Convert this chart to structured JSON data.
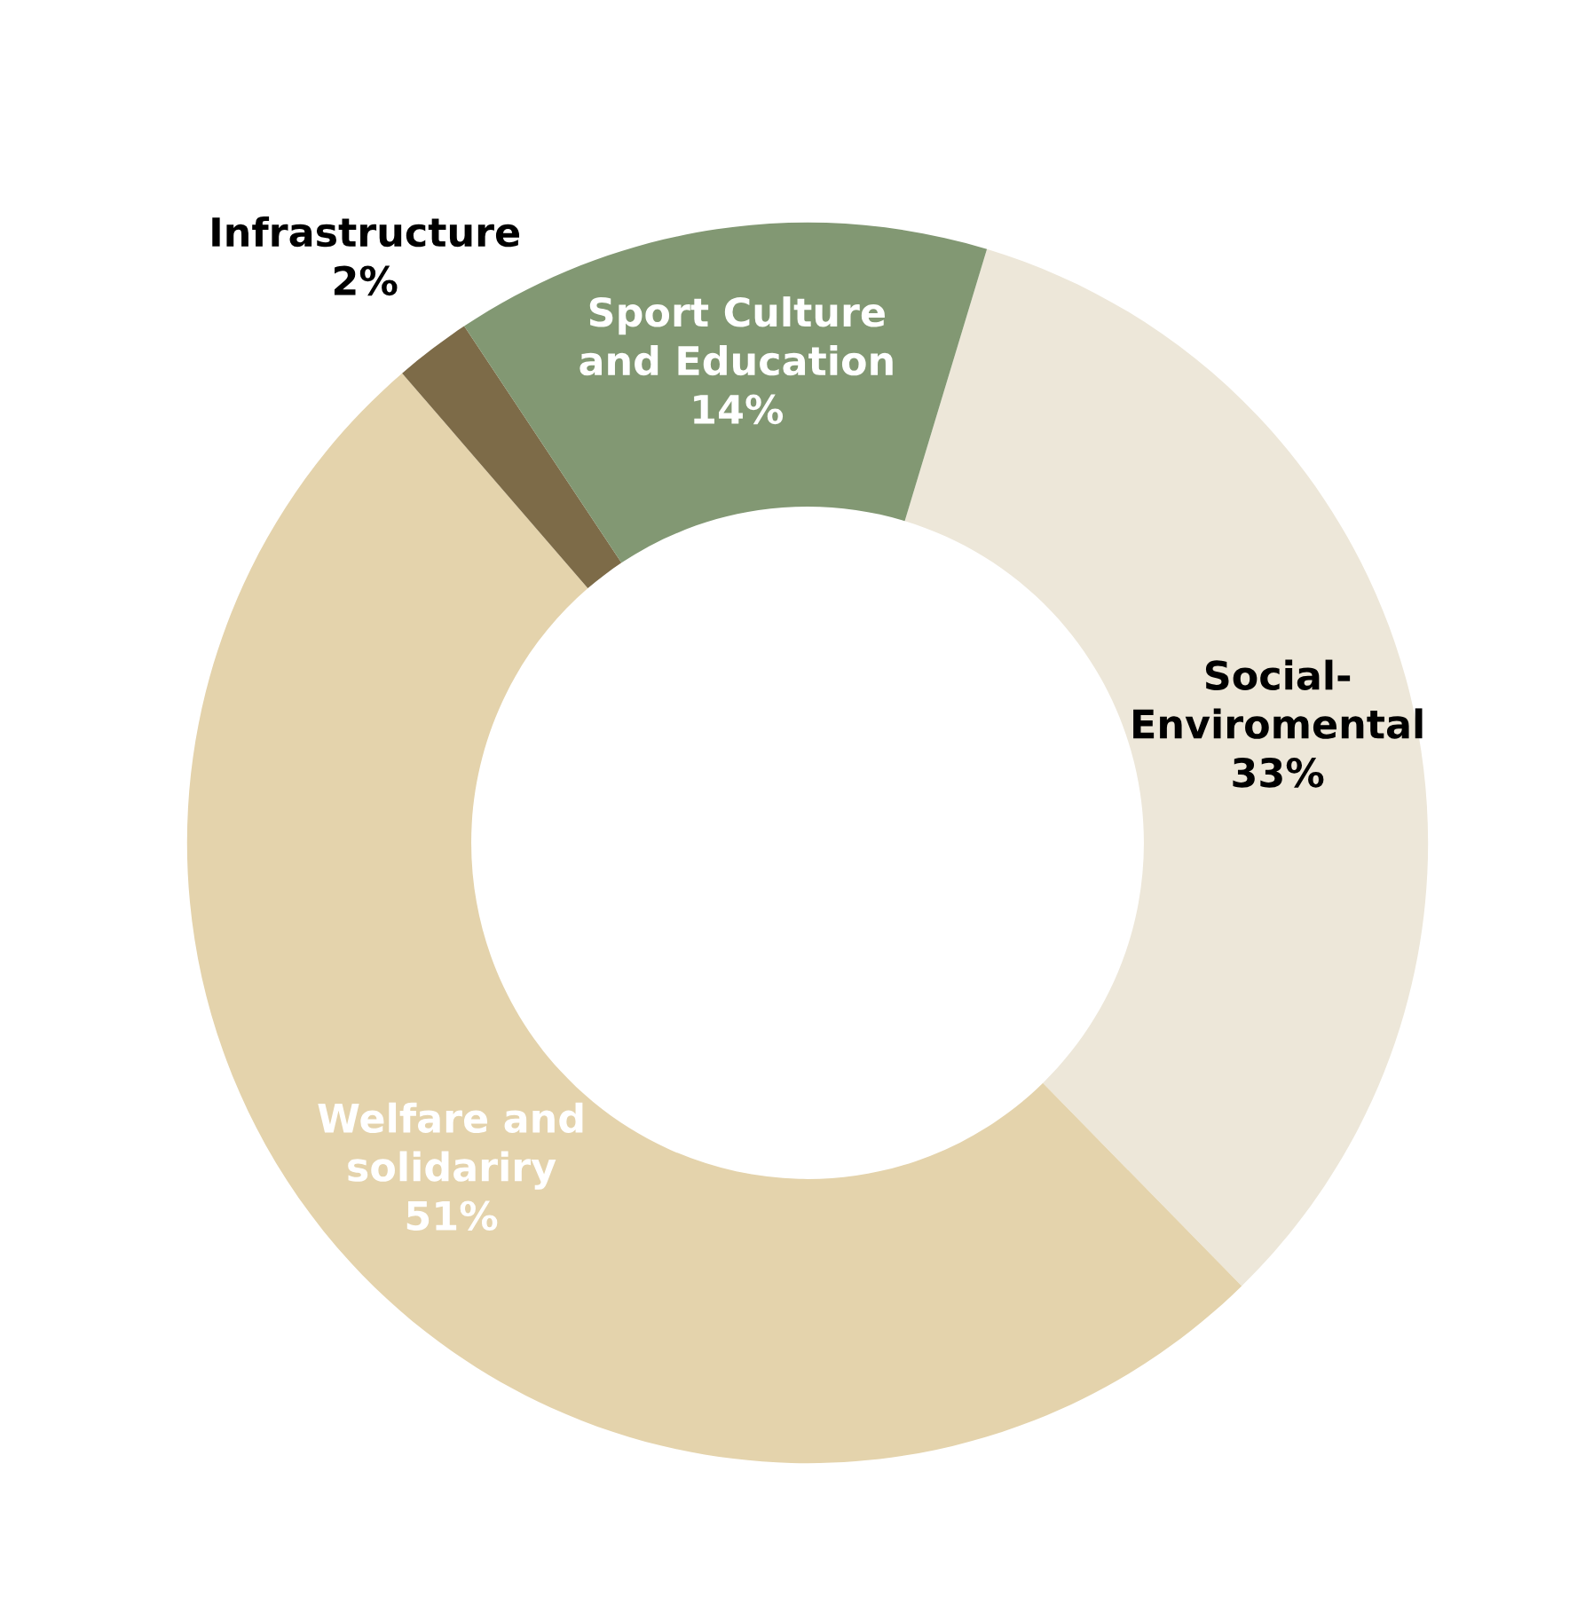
{
  "chart_data": {
    "type": "donut",
    "categories": [
      "Social-\nEnviromental",
      "Welfare and\nsolidariry",
      "Infrastructure",
      "Sport Culture\nand Education"
    ],
    "values": [
      33,
      51,
      2,
      14
    ],
    "colors": [
      "#ede7d9",
      "#e4d3ac",
      "#7d6b48",
      "#829873"
    ],
    "value_labels": [
      "33%",
      "51%",
      "2%",
      "14%"
    ],
    "legend": false
  }
}
